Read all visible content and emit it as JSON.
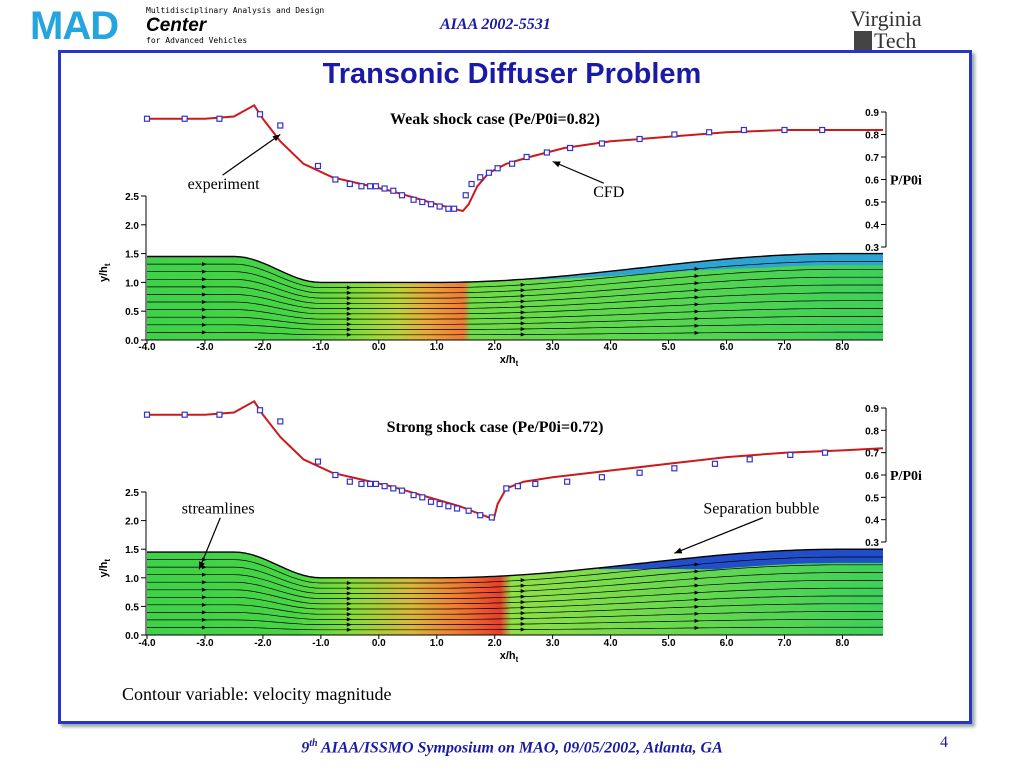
{
  "header": {
    "mad_logo_text": "MAD",
    "mad_subtitle_top": "Multidisciplinary Analysis and Design",
    "mad_center": "Center",
    "mad_subtitle_bottom": "for Advanced Vehicles",
    "paper_id": "AIAA 2002-5531",
    "vt_top": "Virginia",
    "vt_bottom": "Tech"
  },
  "title": "Transonic Diffuser Problem",
  "caption": "Contour variable: velocity magnitude",
  "footer": {
    "sup": "th",
    "pre": "9",
    "text": "AIAA/ISSMO Symposium on MAO, 09/05/2002, Atlanta, GA",
    "page": "4"
  },
  "colors": {
    "accent": "#2a35c6",
    "title_blue": "#1a1aa6",
    "cfd_line": "#cc1a1a",
    "experiment": "#3333cc"
  },
  "chart_data": [
    {
      "type": "line",
      "title": "Weak shock case (Pe/P0i=0.82)",
      "xlabel": "x/h",
      "xlabel_sub": "t",
      "ylabel": "y/h",
      "ylabel_sub": "t",
      "y2label": "P/P0i",
      "xlim": [
        -4.0,
        8.7
      ],
      "ylim": [
        0.0,
        2.5
      ],
      "y2lim": [
        0.3,
        0.9
      ],
      "x_ticks": [
        "-4.0",
        "-3.0",
        "-2.0",
        "-1.0",
        "0.0",
        "1.0",
        "2.0",
        "3.0",
        "4.0",
        "5.0",
        "6.0",
        "7.0",
        "8.0"
      ],
      "y_ticks": [
        "0.0",
        "0.5",
        "1.0",
        "1.5",
        "2.0",
        "2.5"
      ],
      "y2_ticks": [
        "0.3",
        "0.4",
        "0.5",
        "0.6",
        "0.7",
        "0.8",
        "0.9"
      ],
      "annotations": [
        {
          "text": "experiment",
          "x": -3.3,
          "y": 2.62,
          "arrow_to": [
            -1.7,
            3.75
          ]
        },
        {
          "text": "CFD",
          "x": 3.7,
          "y": 2.48,
          "arrow_to": [
            3.0,
            3.45
          ]
        }
      ],
      "series": [
        {
          "name": "CFD",
          "style": "line",
          "x": [
            -4.0,
            -3.0,
            -2.5,
            -2.15,
            -2.0,
            -1.7,
            -1.3,
            -0.8,
            -0.3,
            0.2,
            0.6,
            1.0,
            1.3,
            1.45,
            1.55,
            1.7,
            1.9,
            2.2,
            2.6,
            3.2,
            4.0,
            5.0,
            6.0,
            7.0,
            8.0,
            8.7
          ],
          "y": [
            0.87,
            0.87,
            0.88,
            0.93,
            0.87,
            0.77,
            0.67,
            0.61,
            0.58,
            0.55,
            0.52,
            0.49,
            0.47,
            0.46,
            0.49,
            0.57,
            0.63,
            0.67,
            0.7,
            0.74,
            0.77,
            0.79,
            0.81,
            0.82,
            0.82,
            0.82
          ]
        },
        {
          "name": "experiment",
          "style": "markers",
          "x": [
            -4.0,
            -3.35,
            -2.75,
            -2.05,
            -1.7,
            -1.05,
            -0.75,
            -0.5,
            -0.3,
            -0.15,
            -0.05,
            0.1,
            0.25,
            0.4,
            0.6,
            0.75,
            0.9,
            1.05,
            1.2,
            1.3,
            1.5,
            1.6,
            1.75,
            1.9,
            2.05,
            2.3,
            2.55,
            2.9,
            3.3,
            3.85,
            4.5,
            5.1,
            5.7,
            6.3,
            7.0,
            7.65
          ],
          "y": [
            0.87,
            0.87,
            0.87,
            0.89,
            0.84,
            0.66,
            0.6,
            0.58,
            0.57,
            0.57,
            0.57,
            0.56,
            0.55,
            0.53,
            0.51,
            0.5,
            0.49,
            0.48,
            0.47,
            0.47,
            0.53,
            0.58,
            0.61,
            0.63,
            0.65,
            0.67,
            0.7,
            0.72,
            0.74,
            0.76,
            0.78,
            0.8,
            0.81,
            0.82,
            0.82,
            0.82
          ]
        }
      ],
      "contour": {
        "variable": "velocity magnitude",
        "inlet_height": 1.45,
        "throat_height": 1.0,
        "exit_height": 1.5,
        "shock_x": 1.5,
        "separation": false
      }
    },
    {
      "type": "line",
      "title": "Strong shock case (Pe/P0i=0.72)",
      "xlabel": "x/h",
      "xlabel_sub": "t",
      "ylabel": "y/h",
      "ylabel_sub": "t",
      "y2label": "P/P0i",
      "xlim": [
        -4.0,
        8.7
      ],
      "ylim": [
        0.0,
        2.5
      ],
      "y2lim": [
        0.3,
        0.9
      ],
      "x_ticks": [
        "-4.0",
        "-3.0",
        "-2.0",
        "-1.0",
        "0.0",
        "1.0",
        "2.0",
        "3.0",
        "4.0",
        "5.0",
        "6.0",
        "7.0",
        "8.0"
      ],
      "y_ticks": [
        "0.0",
        "0.5",
        "1.0",
        "1.5",
        "2.0",
        "2.5"
      ],
      "y2_ticks": [
        "0.3",
        "0.4",
        "0.5",
        "0.6",
        "0.7",
        "0.8",
        "0.9"
      ],
      "annotations": [
        {
          "text": "streamlines",
          "x": -3.4,
          "y": 2.12,
          "arrow_to": [
            -3.1,
            1.15
          ]
        },
        {
          "text": "Separation bubble",
          "x": 5.6,
          "y": 2.12,
          "arrow_to": [
            5.1,
            1.43
          ]
        }
      ],
      "series": [
        {
          "name": "CFD",
          "style": "line",
          "x": [
            -4.0,
            -3.0,
            -2.5,
            -2.15,
            -2.0,
            -1.7,
            -1.3,
            -0.8,
            -0.3,
            0.2,
            0.6,
            1.0,
            1.4,
            1.7,
            1.9,
            1.98,
            2.05,
            2.2,
            2.5,
            3.0,
            4.0,
            5.0,
            6.0,
            7.0,
            8.0,
            8.7
          ],
          "y": [
            0.87,
            0.87,
            0.88,
            0.93,
            0.87,
            0.77,
            0.67,
            0.61,
            0.58,
            0.55,
            0.52,
            0.49,
            0.46,
            0.43,
            0.41,
            0.4,
            0.47,
            0.54,
            0.57,
            0.59,
            0.62,
            0.65,
            0.68,
            0.7,
            0.71,
            0.72
          ]
        },
        {
          "name": "experiment",
          "style": "markers",
          "x": [
            -4.0,
            -3.35,
            -2.75,
            -2.05,
            -1.7,
            -1.05,
            -0.75,
            -0.5,
            -0.3,
            -0.15,
            -0.05,
            0.1,
            0.25,
            0.4,
            0.6,
            0.75,
            0.9,
            1.05,
            1.2,
            1.35,
            1.55,
            1.75,
            1.95,
            2.2,
            2.4,
            2.7,
            3.25,
            3.85,
            4.5,
            5.1,
            5.8,
            6.4,
            7.1,
            7.7
          ],
          "y": [
            0.87,
            0.87,
            0.87,
            0.89,
            0.84,
            0.66,
            0.6,
            0.57,
            0.56,
            0.56,
            0.56,
            0.55,
            0.54,
            0.53,
            0.51,
            0.5,
            0.48,
            0.47,
            0.46,
            0.45,
            0.44,
            0.42,
            0.41,
            0.54,
            0.55,
            0.56,
            0.57,
            0.59,
            0.61,
            0.63,
            0.65,
            0.67,
            0.69,
            0.7
          ]
        }
      ],
      "contour": {
        "variable": "velocity magnitude",
        "inlet_height": 1.45,
        "throat_height": 1.0,
        "exit_height": 1.5,
        "shock_x": 2.2,
        "separation": true,
        "separation_range": [
          3.8,
          8.7
        ]
      }
    }
  ]
}
